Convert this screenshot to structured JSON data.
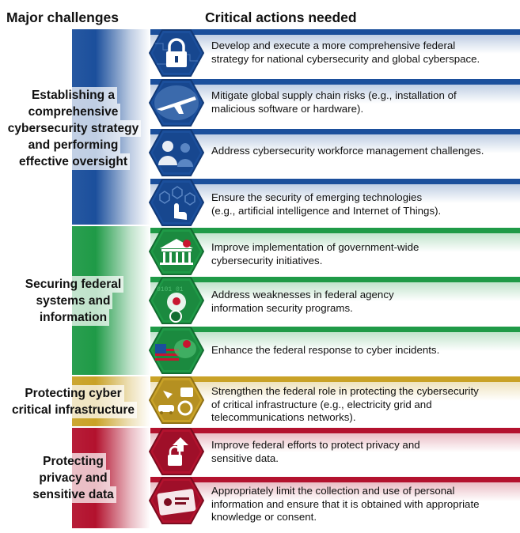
{
  "headers": {
    "challenges": "Major challenges",
    "actions": "Critical actions needed"
  },
  "colors": {
    "blue": "#1b4f9c",
    "green": "#1f9a47",
    "gold": "#c9a227",
    "red": "#b3122e"
  },
  "groups": [
    {
      "color": "blue",
      "challenge": [
        "Establishing a",
        "comprehensive",
        "cybersecurity strategy",
        "and performing",
        "effective oversight"
      ],
      "actions": [
        {
          "icon": "padlock-circuit-icon",
          "lines": [
            "Develop and execute a more comprehensive federal",
            "strategy for national cybersecurity and global cyberspace."
          ]
        },
        {
          "icon": "airplane-globe-icon",
          "lines": [
            "Mitigate global supply chain risks (e.g., installation of",
            "malicious software or hardware)."
          ]
        },
        {
          "icon": "workforce-people-icon",
          "lines": [
            "Address cybersecurity workforce management challenges."
          ]
        },
        {
          "icon": "touch-hand-icon",
          "lines": [
            "Ensure the security of emerging technologies",
            "(e.g., artificial intelligence and Internet of Things)."
          ]
        }
      ]
    },
    {
      "color": "green",
      "challenge": [
        "Securing federal",
        "systems and",
        "information"
      ],
      "actions": [
        {
          "icon": "government-building-bug-icon",
          "lines": [
            "Improve implementation of government-wide",
            "cybersecurity initiatives."
          ]
        },
        {
          "icon": "binary-bug-magnifier-icon",
          "lines": [
            "Address weaknesses in federal agency",
            "information security programs."
          ]
        },
        {
          "icon": "flag-bug-icon",
          "lines": [
            "Enhance the federal response to cyber incidents."
          ]
        }
      ]
    },
    {
      "color": "gold",
      "challenge": [
        "Protecting cyber",
        "critical infrastructure"
      ],
      "actions": [
        {
          "icon": "infrastructure-vehicles-icon",
          "lines": [
            "Strengthen the federal role in protecting the cybersecurity",
            "of critical infrastructure (e.g., electricity grid and",
            "telecommunications networks)."
          ]
        }
      ]
    },
    {
      "color": "red",
      "challenge": [
        "Protecting",
        "privacy and",
        "sensitive data"
      ],
      "actions": [
        {
          "icon": "secure-data-lock-icon",
          "lines": [
            "Improve federal efforts to protect privacy and",
            "sensitive data."
          ]
        },
        {
          "icon": "id-card-icon",
          "lines": [
            "Appropriately limit the collection and use of personal",
            "information and ensure that it is obtained with appropriate",
            "knowledge or consent."
          ]
        }
      ]
    }
  ]
}
